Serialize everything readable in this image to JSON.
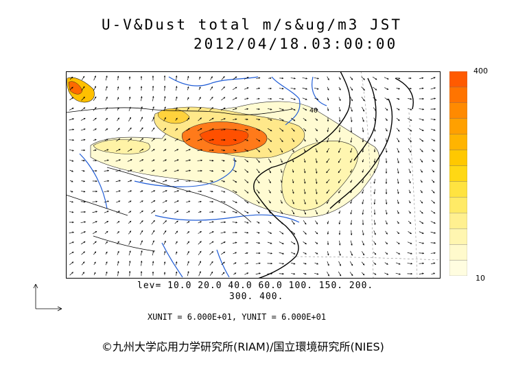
{
  "title": {
    "line1": "U-V&Dust total m/s&ug/m3 JST",
    "line2": "2012/04/18.03:00:00"
  },
  "colorbar": {
    "max_label": "400",
    "min_label": "10",
    "colors": [
      "#fffde0",
      "#fffacc",
      "#fff6b0",
      "#fff090",
      "#ffea66",
      "#ffe340",
      "#ffd814",
      "#ffc800",
      "#ffb400",
      "#ffa000",
      "#ff8a00",
      "#ff7400",
      "#ff5a00"
    ]
  },
  "map_labels": {
    "contour_40": "40"
  },
  "legend": {
    "levels_line1": "lev= 10.0 20.0 40.0 60.0 100. 150. 200.",
    "levels_line2": "300. 400.",
    "units": "XUNIT = 6.000E+01, YUNIT = 6.000E+01"
  },
  "credit": "©九州大学応用力学研究所(RIAM)/国立環境研究所(NIES)"
}
